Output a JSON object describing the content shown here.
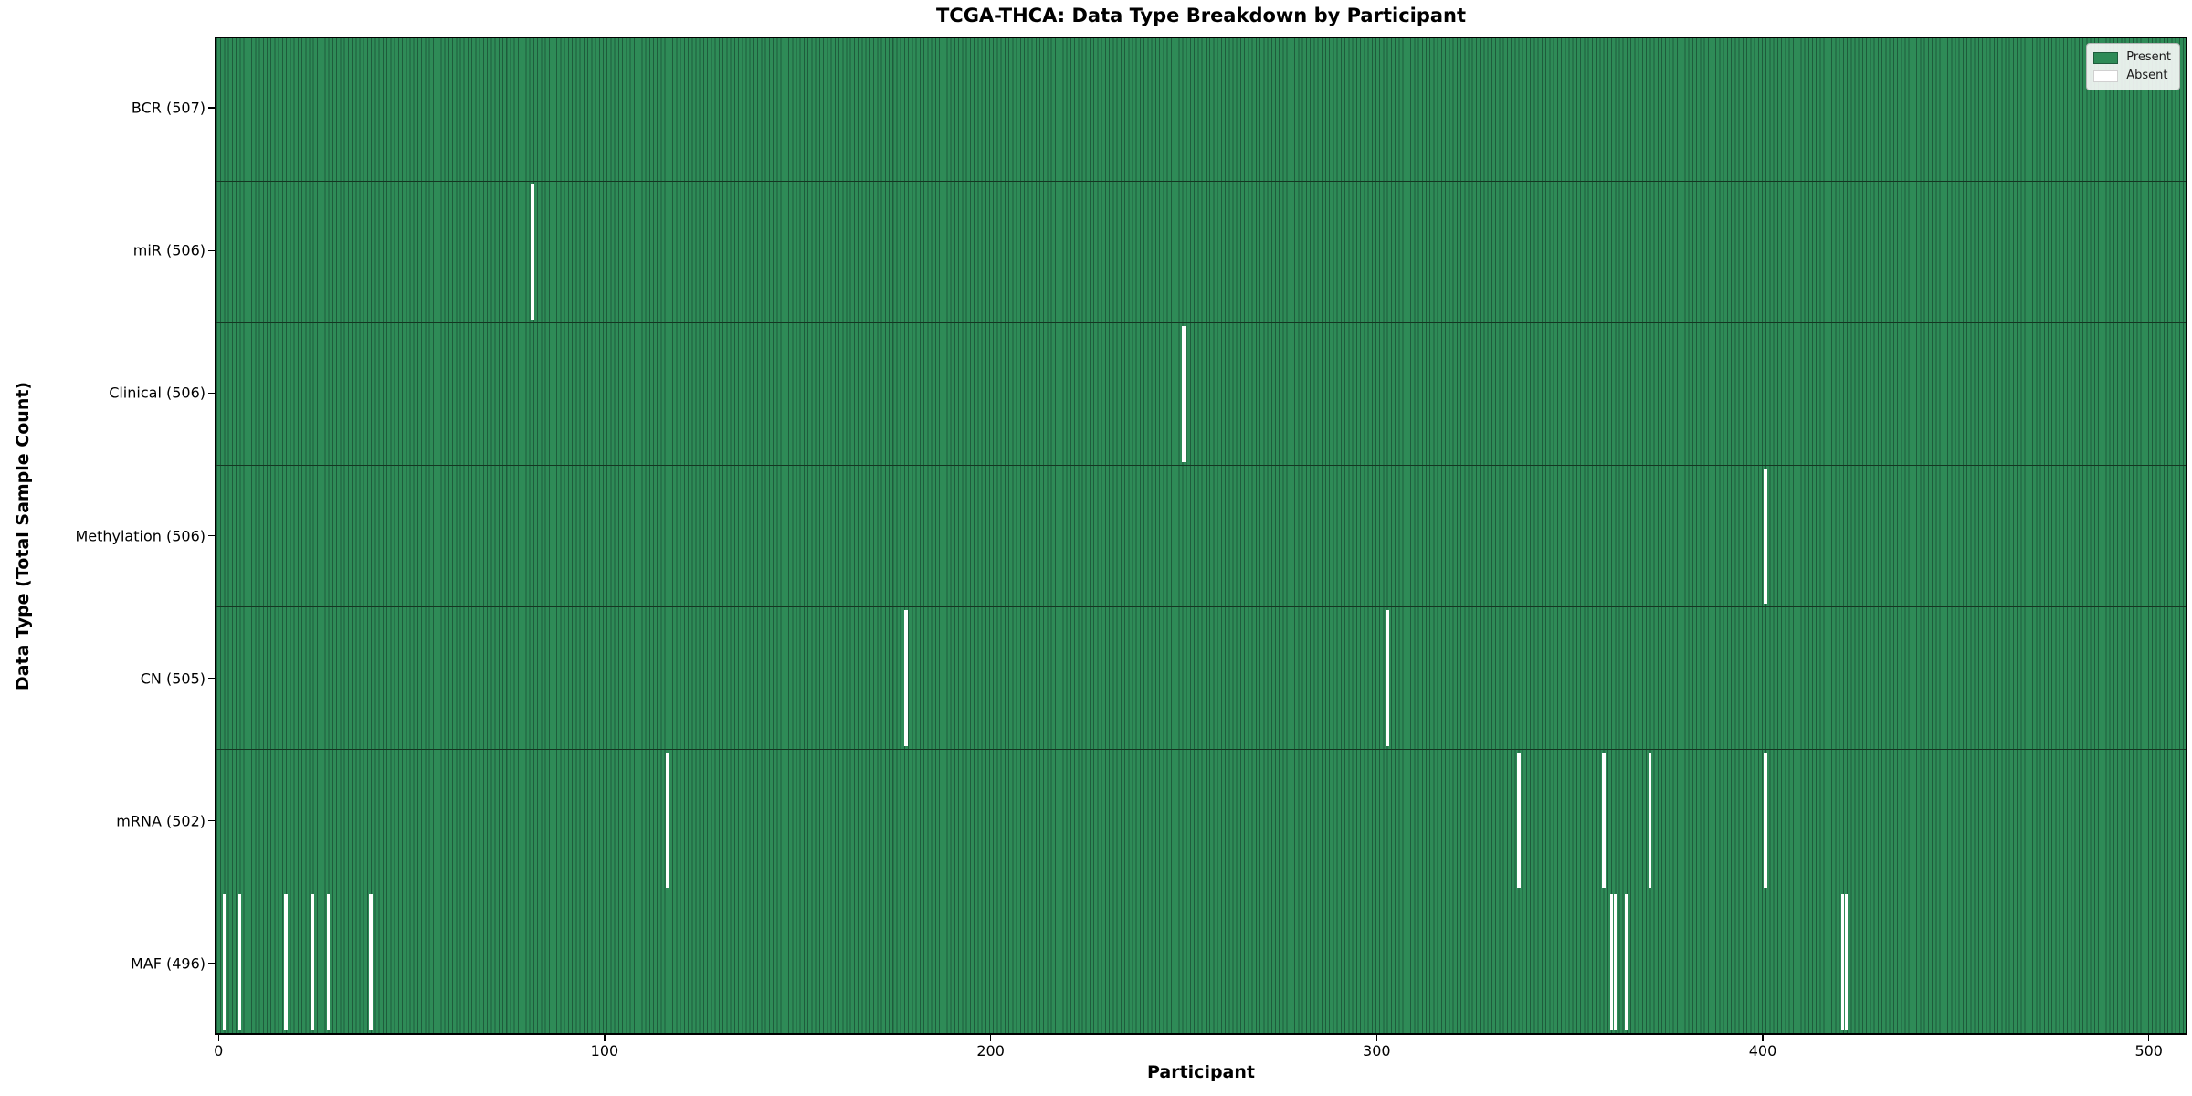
{
  "chart_data": {
    "type": "heatmap",
    "title": "TCGA-THCA: Data Type Breakdown by Participant",
    "xlabel": "Participant",
    "ylabel": "Data Type (Total Sample Count)",
    "x_ticks": [
      0,
      100,
      200,
      300,
      400,
      500
    ],
    "xlim": [
      -0.5,
      510.5
    ],
    "n_participants": 507,
    "grid": false,
    "legend_position": "upper right",
    "rows": [
      {
        "label": "BCR (507)",
        "data_type": "BCR",
        "total": 507,
        "absent_participants": []
      },
      {
        "label": "miR (506)",
        "data_type": "miR",
        "total": 506,
        "absent_participants": [
          81
        ]
      },
      {
        "label": "Clinical (506)",
        "data_type": "Clinical",
        "total": 506,
        "absent_participants": [
          250
        ]
      },
      {
        "label": "Methylation (506)",
        "data_type": "Methylation",
        "total": 506,
        "absent_participants": [
          401
        ]
      },
      {
        "label": "CN (505)",
        "data_type": "CN",
        "total": 505,
        "absent_participants": [
          178,
          303
        ]
      },
      {
        "label": "mRNA (502)",
        "data_type": "mRNA",
        "total": 502,
        "absent_participants": [
          116,
          337,
          359,
          371,
          401
        ]
      },
      {
        "label": "MAF (496)",
        "data_type": "MAF",
        "total": 496,
        "absent_participants": [
          1,
          5,
          17,
          24,
          28,
          39,
          361,
          362,
          365,
          421,
          422
        ]
      }
    ],
    "legend": [
      {
        "label": "Present",
        "color": "#2e8b57"
      },
      {
        "label": "Absent",
        "color": "#ffffff"
      }
    ],
    "colors": {
      "present_fill": "#2e8b57",
      "bar_edge": "#1e5c3c",
      "row_separator": "#143722",
      "absent_fill": "#ffffff",
      "axis": "#000000"
    }
  }
}
